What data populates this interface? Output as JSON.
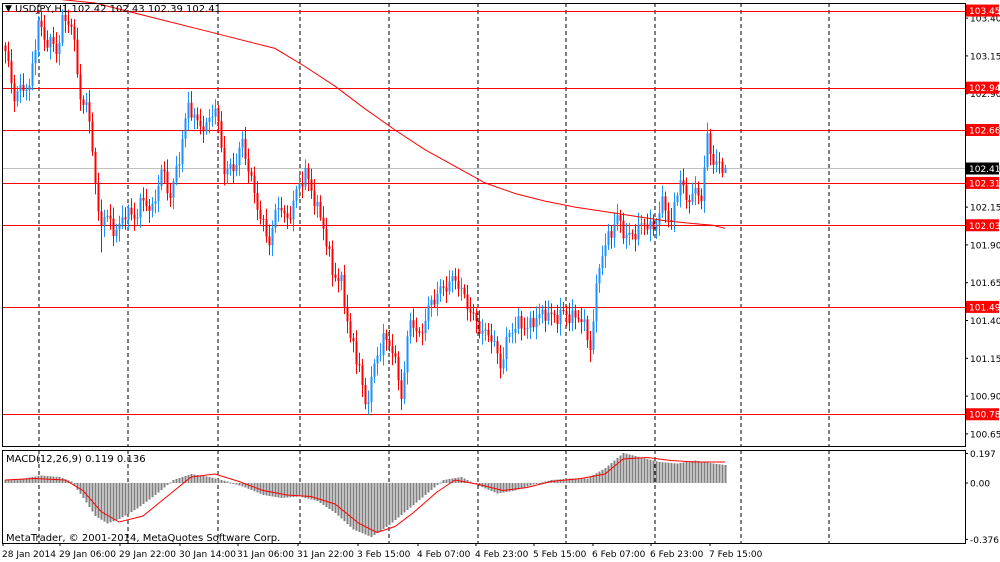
{
  "chart_data": [
    {
      "type": "candlestick",
      "title": "USDJPY,H1  102.42 102.43 102.39 102.41",
      "symbol": "USDJPY",
      "timeframe": "H1",
      "last_ohlc": {
        "open": 102.42,
        "high": 102.43,
        "low": 102.39,
        "close": 102.41
      },
      "current_price_label": "102.41",
      "ylim": [
        100.57,
        103.5
      ],
      "y_ticks": [
        "103.40",
        "103.15",
        "102.90",
        "102.66",
        "102.41",
        "102.15",
        "101.90",
        "101.65",
        "101.40",
        "101.15",
        "100.90",
        "100.65"
      ],
      "y_tick_values": [
        103.4,
        103.15,
        102.9,
        102.66,
        102.41,
        102.15,
        101.9,
        101.65,
        101.4,
        101.15,
        100.9,
        100.65
      ],
      "x_ticks": [
        "28 Jan 2014",
        "29 Jan 06:00",
        "29 Jan 22:00",
        "30 Jan 14:00",
        "31 Jan 06:00",
        "31 Jan 22:00",
        "3 Feb 15:00",
        "4 Feb 07:00",
        "4 Feb 23:00",
        "5 Feb 15:00",
        "6 Feb 07:00",
        "6 Feb 23:00",
        "7 Feb 15:00"
      ],
      "horizontal_levels": [
        {
          "label": "103.45",
          "value": 103.45
        },
        {
          "label": "102.94",
          "value": 102.94
        },
        {
          "label": "102.66",
          "value": 102.66
        },
        {
          "label": "102.31",
          "value": 102.31
        },
        {
          "label": "102.03",
          "value": 102.03
        },
        {
          "label": "101.49",
          "value": 101.49
        },
        {
          "label": "100.78",
          "value": 100.78
        }
      ],
      "moving_average": [
        {
          "x": 0,
          "y": 103.56
        },
        {
          "x": 30,
          "y": 103.5
        },
        {
          "x": 50,
          "y": 103.4
        },
        {
          "x": 70,
          "y": 103.3
        },
        {
          "x": 90,
          "y": 103.2
        },
        {
          "x": 100,
          "y": 103.08
        },
        {
          "x": 110,
          "y": 102.95
        },
        {
          "x": 120,
          "y": 102.8
        },
        {
          "x": 130,
          "y": 102.66
        },
        {
          "x": 140,
          "y": 102.53
        },
        {
          "x": 150,
          "y": 102.42
        },
        {
          "x": 160,
          "y": 102.31
        },
        {
          "x": 170,
          "y": 102.24
        },
        {
          "x": 180,
          "y": 102.19
        },
        {
          "x": 190,
          "y": 102.15
        },
        {
          "x": 200,
          "y": 102.12
        },
        {
          "x": 210,
          "y": 102.09
        },
        {
          "x": 220,
          "y": 102.06
        },
        {
          "x": 230,
          "y": 102.04
        },
        {
          "x": 236,
          "y": 102.03
        },
        {
          "x": 240,
          "y": 102.01
        }
      ],
      "candle_anchors": [
        {
          "x": 0,
          "y": 103.18
        },
        {
          "x": 3,
          "y": 102.88
        },
        {
          "x": 6,
          "y": 102.95
        },
        {
          "x": 8,
          "y": 102.93
        },
        {
          "x": 11,
          "y": 103.38
        },
        {
          "x": 13,
          "y": 103.25
        },
        {
          "x": 15,
          "y": 103.25
        },
        {
          "x": 17,
          "y": 103.17
        },
        {
          "x": 19,
          "y": 103.38
        },
        {
          "x": 22,
          "y": 103.37
        },
        {
          "x": 25,
          "y": 102.88
        },
        {
          "x": 28,
          "y": 102.75
        },
        {
          "x": 31,
          "y": 102.08
        },
        {
          "x": 34,
          "y": 102.08
        },
        {
          "x": 37,
          "y": 101.98
        },
        {
          "x": 40,
          "y": 102.12
        },
        {
          "x": 43,
          "y": 102.08
        },
        {
          "x": 46,
          "y": 102.2
        },
        {
          "x": 49,
          "y": 102.12
        },
        {
          "x": 52,
          "y": 102.4
        },
        {
          "x": 55,
          "y": 102.22
        },
        {
          "x": 58,
          "y": 102.48
        },
        {
          "x": 61,
          "y": 102.83
        },
        {
          "x": 64,
          "y": 102.7
        },
        {
          "x": 67,
          "y": 102.68
        },
        {
          "x": 70,
          "y": 102.82
        },
        {
          "x": 73,
          "y": 102.4
        },
        {
          "x": 76,
          "y": 102.4
        },
        {
          "x": 79,
          "y": 102.58
        },
        {
          "x": 82,
          "y": 102.32
        },
        {
          "x": 85,
          "y": 102.08
        },
        {
          "x": 88,
          "y": 101.92
        },
        {
          "x": 91,
          "y": 102.18
        },
        {
          "x": 94,
          "y": 102.05
        },
        {
          "x": 97,
          "y": 102.25
        },
        {
          "x": 100,
          "y": 102.38
        },
        {
          "x": 103,
          "y": 102.2
        },
        {
          "x": 106,
          "y": 102.02
        },
        {
          "x": 109,
          "y": 101.72
        },
        {
          "x": 112,
          "y": 101.65
        },
        {
          "x": 115,
          "y": 101.28
        },
        {
          "x": 118,
          "y": 101.1
        },
        {
          "x": 120,
          "y": 100.82
        },
        {
          "x": 123,
          "y": 101.1
        },
        {
          "x": 126,
          "y": 101.28
        },
        {
          "x": 129,
          "y": 101.22
        },
        {
          "x": 132,
          "y": 100.9
        },
        {
          "x": 135,
          "y": 101.42
        },
        {
          "x": 138,
          "y": 101.28
        },
        {
          "x": 141,
          "y": 101.48
        },
        {
          "x": 144,
          "y": 101.58
        },
        {
          "x": 147,
          "y": 101.63
        },
        {
          "x": 150,
          "y": 101.68
        },
        {
          "x": 153,
          "y": 101.55
        },
        {
          "x": 156,
          "y": 101.42
        },
        {
          "x": 159,
          "y": 101.32
        },
        {
          "x": 162,
          "y": 101.3
        },
        {
          "x": 165,
          "y": 101.1
        },
        {
          "x": 168,
          "y": 101.32
        },
        {
          "x": 171,
          "y": 101.38
        },
        {
          "x": 174,
          "y": 101.35
        },
        {
          "x": 177,
          "y": 101.42
        },
        {
          "x": 180,
          "y": 101.45
        },
        {
          "x": 183,
          "y": 101.42
        },
        {
          "x": 186,
          "y": 101.45
        },
        {
          "x": 189,
          "y": 101.42
        },
        {
          "x": 192,
          "y": 101.42
        },
        {
          "x": 195,
          "y": 101.22
        },
        {
          "x": 198,
          "y": 101.78
        },
        {
          "x": 201,
          "y": 101.95
        },
        {
          "x": 204,
          "y": 102.08
        },
        {
          "x": 207,
          "y": 101.95
        },
        {
          "x": 210,
          "y": 101.98
        },
        {
          "x": 213,
          "y": 102.05
        },
        {
          "x": 216,
          "y": 102.0
        },
        {
          "x": 219,
          "y": 102.18
        },
        {
          "x": 222,
          "y": 102.05
        },
        {
          "x": 225,
          "y": 102.35
        },
        {
          "x": 227,
          "y": 102.18
        },
        {
          "x": 229,
          "y": 102.25
        },
        {
          "x": 232,
          "y": 102.22
        },
        {
          "x": 234,
          "y": 102.6
        },
        {
          "x": 236,
          "y": 102.45
        },
        {
          "x": 238,
          "y": 102.42
        },
        {
          "x": 240,
          "y": 102.41
        }
      ],
      "spikes": [
        {
          "x": 32,
          "y": 101.85
        },
        {
          "x": 180,
          "y": 101.49
        }
      ]
    },
    {
      "type": "bar",
      "title": "MACD(12,26,9) 0.119 0.136",
      "name": "MACD",
      "params": "12,26,9",
      "main_value": 0.119,
      "signal_value": 0.136,
      "ylim": [
        -0.4,
        0.22
      ],
      "y_ticks": [
        "0.197",
        "0.00",
        "-0.376"
      ],
      "y_tick_values": [
        0.197,
        0.0,
        -0.376
      ],
      "histogram_anchors": [
        {
          "x": 0,
          "y": 0.02
        },
        {
          "x": 6,
          "y": 0.03
        },
        {
          "x": 12,
          "y": 0.05
        },
        {
          "x": 18,
          "y": 0.04
        },
        {
          "x": 22,
          "y": 0.01
        },
        {
          "x": 26,
          "y": -0.1
        },
        {
          "x": 30,
          "y": -0.22
        },
        {
          "x": 34,
          "y": -0.27
        },
        {
          "x": 38,
          "y": -0.24
        },
        {
          "x": 44,
          "y": -0.17
        },
        {
          "x": 50,
          "y": -0.08
        },
        {
          "x": 56,
          "y": 0.02
        },
        {
          "x": 62,
          "y": 0.06
        },
        {
          "x": 68,
          "y": 0.04
        },
        {
          "x": 74,
          "y": 0.01
        },
        {
          "x": 80,
          "y": -0.03
        },
        {
          "x": 86,
          "y": -0.08
        },
        {
          "x": 92,
          "y": -0.1
        },
        {
          "x": 98,
          "y": -0.09
        },
        {
          "x": 104,
          "y": -0.12
        },
        {
          "x": 110,
          "y": -0.2
        },
        {
          "x": 116,
          "y": -0.31
        },
        {
          "x": 122,
          "y": -0.36
        },
        {
          "x": 128,
          "y": -0.28
        },
        {
          "x": 134,
          "y": -0.18
        },
        {
          "x": 140,
          "y": -0.08
        },
        {
          "x": 146,
          "y": 0.02
        },
        {
          "x": 152,
          "y": 0.04
        },
        {
          "x": 158,
          "y": -0.02
        },
        {
          "x": 164,
          "y": -0.07
        },
        {
          "x": 170,
          "y": -0.05
        },
        {
          "x": 176,
          "y": -0.01
        },
        {
          "x": 182,
          "y": 0.02
        },
        {
          "x": 188,
          "y": 0.03
        },
        {
          "x": 194,
          "y": 0.03
        },
        {
          "x": 200,
          "y": 0.1
        },
        {
          "x": 206,
          "y": 0.2
        },
        {
          "x": 212,
          "y": 0.17
        },
        {
          "x": 218,
          "y": 0.14
        },
        {
          "x": 224,
          "y": 0.13
        },
        {
          "x": 230,
          "y": 0.15
        },
        {
          "x": 236,
          "y": 0.13
        },
        {
          "x": 240,
          "y": 0.12
        }
      ],
      "signal_line": [
        {
          "x": 0,
          "y": 0.02
        },
        {
          "x": 10,
          "y": 0.03
        },
        {
          "x": 20,
          "y": 0.02
        },
        {
          "x": 26,
          "y": -0.05
        },
        {
          "x": 32,
          "y": -0.19
        },
        {
          "x": 38,
          "y": -0.26
        },
        {
          "x": 46,
          "y": -0.22
        },
        {
          "x": 54,
          "y": -0.09
        },
        {
          "x": 62,
          "y": 0.04
        },
        {
          "x": 70,
          "y": 0.06
        },
        {
          "x": 78,
          "y": 0.01
        },
        {
          "x": 86,
          "y": -0.05
        },
        {
          "x": 94,
          "y": -0.08
        },
        {
          "x": 102,
          "y": -0.09
        },
        {
          "x": 110,
          "y": -0.14
        },
        {
          "x": 118,
          "y": -0.27
        },
        {
          "x": 124,
          "y": -0.33
        },
        {
          "x": 130,
          "y": -0.29
        },
        {
          "x": 136,
          "y": -0.2
        },
        {
          "x": 144,
          "y": -0.06
        },
        {
          "x": 150,
          "y": 0.02
        },
        {
          "x": 158,
          "y": -0.01
        },
        {
          "x": 166,
          "y": -0.05
        },
        {
          "x": 174,
          "y": -0.03
        },
        {
          "x": 182,
          "y": 0.01
        },
        {
          "x": 192,
          "y": 0.03
        },
        {
          "x": 200,
          "y": 0.06
        },
        {
          "x": 206,
          "y": 0.16
        },
        {
          "x": 214,
          "y": 0.17
        },
        {
          "x": 222,
          "y": 0.15
        },
        {
          "x": 230,
          "y": 0.14
        },
        {
          "x": 240,
          "y": 0.14
        }
      ]
    }
  ],
  "footer": {
    "copyright": "MetaTrader, © 2001-2014, MetaQuotes Software Corp."
  },
  "colors": {
    "bull": "#1e90ff",
    "bear": "#ff0000",
    "level_line": "#ff0000",
    "ma_line": "#ff0000",
    "grid": "#000000",
    "current_price": "#c0c0c0",
    "histogram": "#808080",
    "signal": "#ff0000"
  }
}
